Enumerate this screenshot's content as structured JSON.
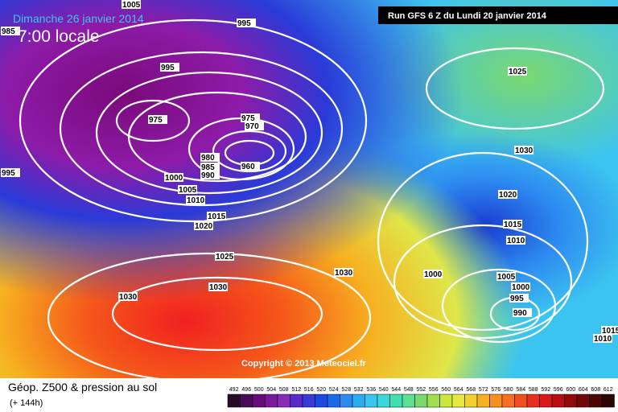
{
  "header": {
    "date": "Dimanche 26 janvier 2014",
    "time": "7:00 locale",
    "run": "Run GFS 6 Z du Lundi 20 janvier 2014"
  },
  "map": {
    "isobar_labels": [
      "1005",
      "995",
      "985",
      "995",
      "975",
      "975",
      "970",
      "960",
      "980",
      "985",
      "990",
      "995",
      "1000",
      "1005",
      "1010",
      "1015",
      "1020",
      "1025",
      "1030",
      "1030",
      "1030",
      "1025",
      "1030",
      "1020",
      "1015",
      "1010",
      "1000",
      "1005",
      "1000",
      "995",
      "990",
      "1015",
      "1010"
    ],
    "copyright": "Copyright © 2013 Meteociel.fr"
  },
  "footer": {
    "title": "Géop. Z500 & pression au sol",
    "lead": "(+ 144h)",
    "scale": [
      492,
      496,
      500,
      504,
      508,
      512,
      516,
      520,
      524,
      528,
      532,
      536,
      540,
      544,
      548,
      552,
      556,
      560,
      564,
      568,
      572,
      576,
      580,
      584,
      588,
      592,
      596,
      600,
      604,
      608,
      612
    ]
  }
}
